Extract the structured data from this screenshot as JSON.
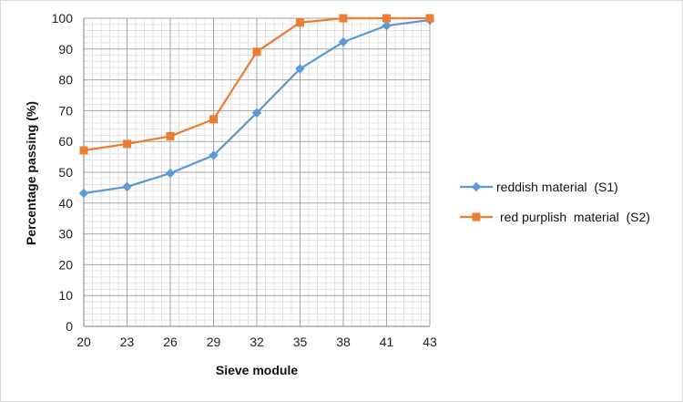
{
  "chart_data": {
    "type": "line",
    "title": "",
    "xlabel": "Sieve  module",
    "ylabel": "Percentage passing (%)",
    "categories": [
      "20",
      "23",
      "26",
      "29",
      "32",
      "35",
      "38",
      "41",
      "43"
    ],
    "ylim": [
      0,
      100
    ],
    "yticks": [
      "0",
      "10",
      "20",
      "30",
      "40",
      "50",
      "60",
      "70",
      "80",
      "90",
      "100"
    ],
    "grid": true,
    "legend_position": "right",
    "series": [
      {
        "name": "reddish material  (S1)",
        "values": [
          43.2,
          45.3,
          49.7,
          55.5,
          69.3,
          83.6,
          92.3,
          97.6,
          99.4
        ],
        "color": "#5B9BD5",
        "marker": "diamond"
      },
      {
        "name": "red purplish  material  (S2)",
        "values": [
          57.1,
          59.2,
          61.7,
          67.2,
          89.1,
          98.6,
          100,
          100,
          100
        ],
        "color": "#ED7D31",
        "marker": "square"
      }
    ]
  }
}
